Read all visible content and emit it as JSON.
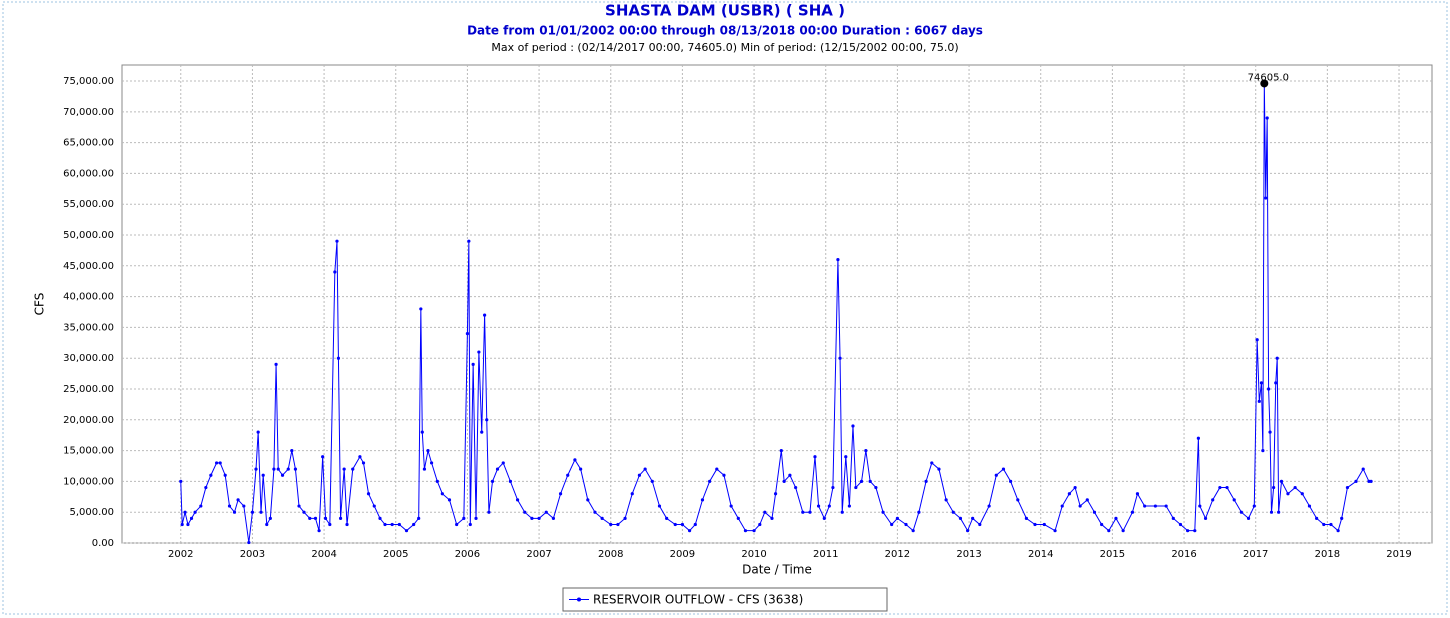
{
  "chart_data": {
    "type": "line",
    "title": "SHASTA DAM  (USBR) ( SHA )",
    "subtitle": "Date from 01/01/2002 00:00 through 08/13/2018 00:00 Duration : 6067 days",
    "annotation": "Max of period : (02/14/2017 00:00, 74605.0)  Min of period: (12/15/2002 00:00, 75.0)",
    "x_label": "Date / Time",
    "y_label": "CFS",
    "xlim": [
      2001.18,
      2019.46
    ],
    "xticks": [
      2002,
      2003,
      2004,
      2005,
      2006,
      2007,
      2008,
      2009,
      2010,
      2011,
      2012,
      2013,
      2014,
      2015,
      2016,
      2017,
      2018,
      2019
    ],
    "ylim": [
      0,
      77600
    ],
    "yticks": [
      {
        "value": 0,
        "label": "0.00"
      },
      {
        "value": 5000,
        "label": "5,000.00"
      },
      {
        "value": 10000,
        "label": "10,000.00"
      },
      {
        "value": 15000,
        "label": "15,000.00"
      },
      {
        "value": 20000,
        "label": "20,000.00"
      },
      {
        "value": 25000,
        "label": "25,000.00"
      },
      {
        "value": 30000,
        "label": "30,000.00"
      },
      {
        "value": 35000,
        "label": "35,000.00"
      },
      {
        "value": 40000,
        "label": "40,000.00"
      },
      {
        "value": 45000,
        "label": "45,000.00"
      },
      {
        "value": 50000,
        "label": "50,000.00"
      },
      {
        "value": 55000,
        "label": "55,000.00"
      },
      {
        "value": 60000,
        "label": "60,000.00"
      },
      {
        "value": 65000,
        "label": "65,000.00"
      },
      {
        "value": 70000,
        "label": "70,000.00"
      },
      {
        "value": 75000,
        "label": "75,000.00"
      }
    ],
    "grid": true,
    "legend": "bottom",
    "peak": {
      "x": 2017.12,
      "y": 74605,
      "label": "74605.0"
    },
    "series": [
      {
        "name": "RESERVOIR OUTFLOW - CFS (3638)",
        "color": "#0000ff",
        "x": [
          2002.0,
          2002.02,
          2002.06,
          2002.1,
          2002.15,
          2002.2,
          2002.28,
          2002.35,
          2002.42,
          2002.5,
          2002.55,
          2002.62,
          2002.68,
          2002.75,
          2002.8,
          2002.88,
          2002.95,
          2003.0,
          2003.05,
          2003.08,
          2003.12,
          2003.15,
          2003.2,
          2003.25,
          2003.3,
          2003.33,
          2003.36,
          2003.42,
          2003.5,
          2003.55,
          2003.6,
          2003.65,
          2003.72,
          2003.8,
          2003.88,
          2003.93,
          2003.98,
          2004.02,
          2004.08,
          2004.15,
          2004.18,
          2004.2,
          2004.23,
          2004.28,
          2004.32,
          2004.4,
          2004.5,
          2004.55,
          2004.62,
          2004.7,
          2004.78,
          2004.85,
          2004.95,
          2005.05,
          2005.15,
          2005.25,
          2005.32,
          2005.35,
          2005.37,
          2005.4,
          2005.45,
          2005.5,
          2005.58,
          2005.65,
          2005.75,
          2005.85,
          2005.95,
          2006.0,
          2006.02,
          2006.04,
          2006.08,
          2006.12,
          2006.16,
          2006.2,
          2006.24,
          2006.27,
          2006.3,
          2006.35,
          2006.42,
          2006.5,
          2006.6,
          2006.7,
          2006.8,
          2006.9,
          2007.0,
          2007.1,
          2007.2,
          2007.3,
          2007.4,
          2007.5,
          2007.58,
          2007.68,
          2007.78,
          2007.88,
          2008.0,
          2008.1,
          2008.2,
          2008.3,
          2008.4,
          2008.48,
          2008.58,
          2008.68,
          2008.78,
          2008.9,
          2009.0,
          2009.1,
          2009.18,
          2009.28,
          2009.38,
          2009.48,
          2009.58,
          2009.68,
          2009.78,
          2009.88,
          2010.0,
          2010.08,
          2010.15,
          2010.25,
          2010.3,
          2010.38,
          2010.42,
          2010.5,
          2010.58,
          2010.68,
          2010.78,
          2010.85,
          2010.9,
          2010.98,
          2011.05,
          2011.1,
          2011.17,
          2011.2,
          2011.23,
          2011.28,
          2011.33,
          2011.38,
          2011.42,
          2011.5,
          2011.56,
          2011.62,
          2011.7,
          2011.8,
          2011.92,
          2012.0,
          2012.12,
          2012.22,
          2012.3,
          2012.4,
          2012.48,
          2012.58,
          2012.68,
          2012.78,
          2012.88,
          2012.98,
          2013.05,
          2013.15,
          2013.28,
          2013.38,
          2013.48,
          2013.58,
          2013.68,
          2013.8,
          2013.92,
          2014.05,
          2014.2,
          2014.3,
          2014.4,
          2014.48,
          2014.55,
          2014.65,
          2014.75,
          2014.85,
          2014.95,
          2015.05,
          2015.15,
          2015.28,
          2015.35,
          2015.45,
          2015.6,
          2015.75,
          2015.85,
          2015.95,
          2016.05,
          2016.15,
          2016.2,
          2016.22,
          2016.3,
          2016.4,
          2016.5,
          2016.6,
          2016.7,
          2016.8,
          2016.9,
          2016.98,
          2017.02,
          2017.05,
          2017.08,
          2017.1,
          2017.12,
          2017.14,
          2017.16,
          2017.18,
          2017.2,
          2017.22,
          2017.25,
          2017.28,
          2017.3,
          2017.32,
          2017.36,
          2017.45,
          2017.55,
          2017.65,
          2017.75,
          2017.85,
          2017.95,
          2018.05,
          2018.15,
          2018.2,
          2018.28,
          2018.4,
          2018.5,
          2018.58,
          2018.61
        ],
        "values": [
          10000,
          3000,
          5000,
          3000,
          4000,
          5000,
          6000,
          9000,
          11000,
          13000,
          13000,
          11000,
          6000,
          5000,
          7000,
          6000,
          75,
          5000,
          12000,
          18000,
          5000,
          11000,
          3000,
          4000,
          12000,
          29000,
          12000,
          11000,
          12000,
          15000,
          12000,
          6000,
          5000,
          4000,
          4000,
          2000,
          14000,
          4000,
          3000,
          44000,
          49000,
          30000,
          4000,
          12000,
          3000,
          12000,
          14000,
          13000,
          8000,
          6000,
          4000,
          3000,
          3000,
          3000,
          2000,
          3000,
          4000,
          38000,
          18000,
          12000,
          15000,
          13000,
          10000,
          8000,
          7000,
          3000,
          4000,
          34000,
          49000,
          3000,
          29000,
          4000,
          31000,
          18000,
          37000,
          20000,
          5000,
          10000,
          12000,
          13000,
          10000,
          7000,
          5000,
          4000,
          4000,
          5000,
          4000,
          8000,
          11000,
          13500,
          12000,
          7000,
          5000,
          4000,
          3000,
          3000,
          4000,
          8000,
          11000,
          12000,
          10000,
          6000,
          4000,
          3000,
          3000,
          2000,
          3000,
          7000,
          10000,
          12000,
          11000,
          6000,
          4000,
          2000,
          2000,
          3000,
          5000,
          4000,
          8000,
          15000,
          10000,
          11000,
          9000,
          5000,
          5000,
          14000,
          6000,
          4000,
          6000,
          9000,
          46000,
          30000,
          5000,
          14000,
          6000,
          19000,
          9000,
          10000,
          15000,
          10000,
          9000,
          5000,
          3000,
          4000,
          3000,
          2000,
          5000,
          10000,
          13000,
          12000,
          7000,
          5000,
          4000,
          2000,
          4000,
          3000,
          6000,
          11000,
          12000,
          10000,
          7000,
          4000,
          3000,
          3000,
          2000,
          6000,
          8000,
          9000,
          6000,
          7000,
          5000,
          3000,
          2000,
          4000,
          2000,
          5000,
          8000,
          6000,
          6000,
          6000,
          4000,
          3000,
          2000,
          2000,
          17000,
          6000,
          4000,
          7000,
          9000,
          9000,
          7000,
          5000,
          4000,
          6000,
          33000,
          23000,
          26000,
          15000,
          74605,
          56000,
          69000,
          25000,
          18000,
          5000,
          9000,
          26000,
          30000,
          5000,
          10000,
          8000,
          9000,
          8000,
          6000,
          4000,
          3000,
          3000,
          2000,
          4000,
          9000,
          10000,
          12000,
          10000,
          10000
        ]
      }
    ]
  }
}
